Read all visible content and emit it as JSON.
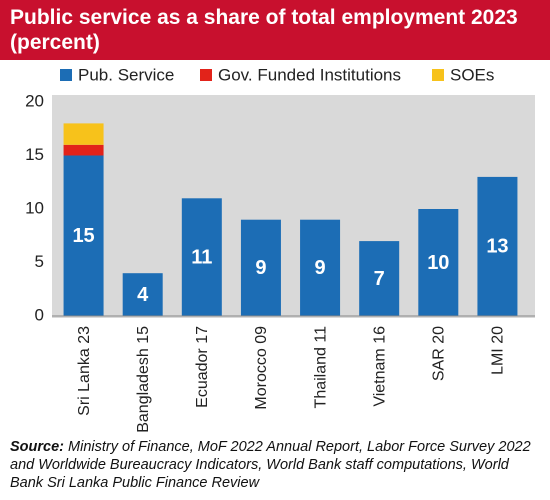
{
  "chart_data": {
    "type": "stacked_bar",
    "title": "Public service as a share of total employment 2023 (percent)",
    "categories": [
      "Sri Lanka 23",
      "Bangladesh 15",
      "Ecuador 17",
      "Morocco 09",
      "Thailand 11",
      "Vietnam 16",
      "SAR 20",
      "LMI 20"
    ],
    "series": [
      {
        "name": "Pub. Service",
        "color": "#1c6db5",
        "values": [
          15,
          4,
          11,
          9,
          9,
          7,
          10,
          13
        ]
      },
      {
        "name": "Gov. Funded Institutions",
        "color": "#e2231a",
        "values": [
          1,
          null,
          null,
          null,
          null,
          null,
          null,
          null
        ]
      },
      {
        "name": "SOEs",
        "color": "#f7c21b",
        "values": [
          2,
          null,
          null,
          null,
          null,
          null,
          null,
          null
        ]
      }
    ],
    "ylim": [
      0,
      20
    ],
    "yticks": [
      0,
      5,
      10,
      15,
      20
    ],
    "grid": false,
    "legend": "top",
    "source_label": "Source:",
    "source": "Ministry of Finance, MoF 2022 Annual Report, Labor Force Survey 2022 and Worldwide Bureaucracy Indicators, World Bank staff computations, World Bank Sri Lanka Public Finance Review"
  }
}
